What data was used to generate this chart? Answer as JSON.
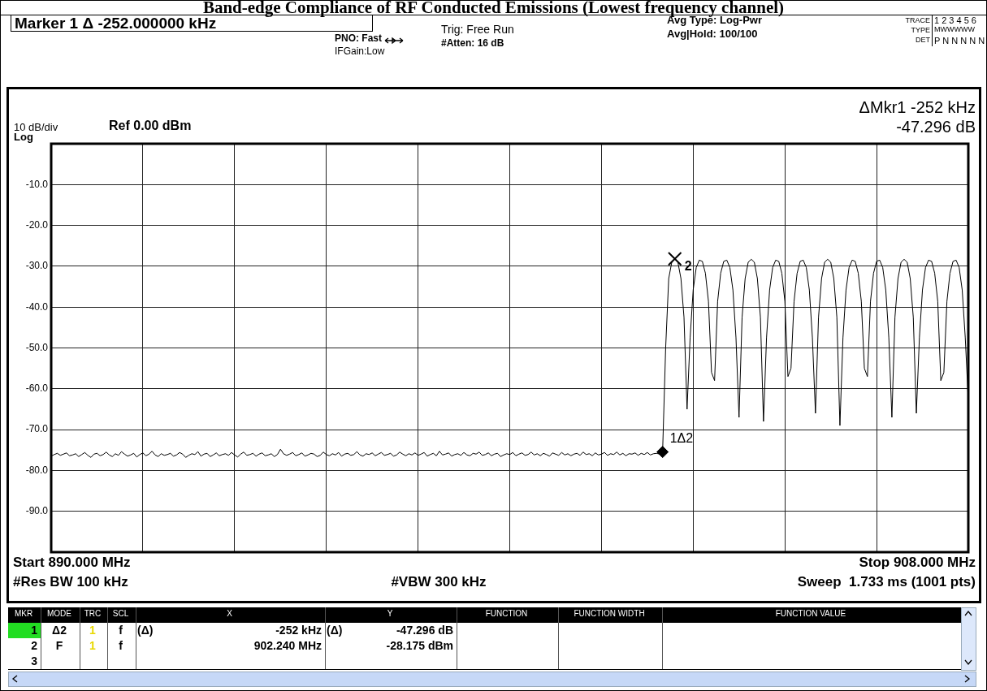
{
  "chart_data": {
    "type": "line",
    "title": "Band-edge Compliance of RF Conducted Emissions (Lowest frequency channel)",
    "categories": [
      null,
      null,
      null,
      null,
      null,
      null,
      null,
      null,
      null,
      null,
      null,
      null,
      null,
      null,
      null,
      null,
      null,
      null,
      null,
      null,
      null,
      null,
      null,
      null,
      null,
      null,
      null,
      null,
      null,
      null,
      null,
      null,
      null,
      null,
      null,
      null,
      null,
      null,
      null,
      null,
      null,
      null,
      null,
      null,
      null,
      null,
      null,
      null,
      null,
      null,
      null,
      null,
      null,
      null,
      null,
      null,
      null,
      null,
      null,
      null,
      null,
      null,
      null,
      null,
      null,
      null,
      null,
      null,
      null,
      null,
      null,
      null,
      null,
      null,
      null,
      null,
      null,
      null,
      null,
      null,
      null,
      null,
      null,
      null,
      null,
      null,
      null,
      null,
      null,
      null,
      null,
      null,
      null,
      null,
      null,
      null,
      null,
      null,
      null,
      null,
      null,
      null,
      null,
      null,
      null,
      null,
      null,
      null,
      null,
      null,
      null,
      null,
      null,
      null,
      null,
      null,
      null,
      null,
      null,
      null,
      null,
      null,
      null,
      null,
      null,
      null,
      null,
      null,
      null,
      null,
      null,
      null,
      null,
      null,
      null,
      null,
      null,
      null,
      null,
      null,
      null,
      null,
      null,
      null,
      null,
      null,
      null,
      null,
      null,
      null,
      null,
      null,
      null,
      null,
      null,
      null,
      null,
      null,
      null,
      null,
      null,
      null,
      null,
      null,
      null,
      null,
      null,
      null,
      null,
      null,
      null,
      null,
      null,
      null,
      null,
      null,
      null,
      null,
      null,
      null,
      null,
      null,
      null,
      null,
      null,
      null,
      null,
      null,
      null,
      null,
      null,
      null,
      null,
      null,
      null,
      null,
      null,
      null,
      null,
      null,
      null,
      null,
      null,
      null,
      null,
      null,
      null,
      null,
      null,
      null,
      null,
      null,
      null,
      null,
      null,
      null,
      null,
      null,
      null,
      null,
      null,
      null,
      null,
      null,
      null,
      null,
      null,
      null,
      null,
      null,
      null,
      null,
      null,
      null,
      null,
      null,
      null,
      null,
      null,
      null,
      null,
      null,
      null,
      null,
      null,
      null,
      null,
      null,
      null,
      null,
      null,
      null,
      null,
      null,
      null,
      null,
      null,
      null,
      null,
      null,
      null,
      null,
      null,
      null,
      null,
      null,
      null,
      null,
      null,
      null,
      null,
      null,
      null,
      null,
      null,
      null,
      null,
      null,
      null,
      null,
      null,
      null,
      null,
      null,
      null,
      null,
      null,
      null,
      null,
      null,
      null,
      null,
      null,
      null,
      null,
      null,
      null,
      null,
      null,
      null,
      null
    ],
    "ylim": [
      -100,
      0
    ],
    "yticks": [
      {
        "value": 0,
        "label": null
      },
      {
        "value": -10,
        "label": "-10.0"
      },
      {
        "value": -20,
        "label": "-20.0"
      },
      {
        "value": -30,
        "label": "-30.0"
      },
      {
        "value": -40,
        "label": "-40.0"
      },
      {
        "value": -50,
        "label": "-50.0"
      },
      {
        "value": -60,
        "label": "-60.0"
      },
      {
        "value": -70,
        "label": "-70.0"
      },
      {
        "value": -80,
        "label": "-80.0"
      },
      {
        "value": -90,
        "label": "-90.0"
      },
      {
        "value": -100,
        "label": null
      }
    ],
    "grid": true,
    "tick_labels": "y",
    "series": [
      {
        "type": "line",
        "color": "#000000",
        "marker": "none",
        "values": [
          -76.5,
          -76.1,
          -75.8,
          -76.3,
          -76.0,
          -75.7,
          -76.4,
          -76.2,
          -75.9,
          -76.6,
          -76.1,
          -75.6,
          -76.3,
          -76.8,
          -76.0,
          -75.8,
          -76.4,
          -76.1,
          -75.5,
          -76.2,
          -76.6,
          -75.9,
          -76.3,
          -75.4,
          -76.0,
          -76.5,
          -76.2,
          -75.8,
          -76.7,
          -76.1,
          -75.7,
          -76.4,
          -76.0,
          -75.3,
          -76.2,
          -76.6,
          -75.9,
          -76.3,
          -76.1,
          -75.8,
          -76.5,
          -76.2,
          -75.6,
          -76.0,
          -76.8,
          -76.3,
          -75.9,
          -76.1,
          -75.4,
          -76.5,
          -76.0,
          -75.8,
          -76.6,
          -76.2,
          -75.7,
          -76.4,
          -76.1,
          -75.9,
          -76.3,
          -75.6,
          -76.2,
          -76.7,
          -76.0,
          -75.5,
          -76.3,
          -76.1,
          -75.8,
          -76.5,
          -76.0,
          -75.7,
          -76.4,
          -76.2,
          -75.9,
          -76.6,
          -76.1,
          -74.8,
          -75.9,
          -76.3,
          -76.0,
          -75.6,
          -76.4,
          -76.1,
          -75.7,
          -76.5,
          -76.2,
          -75.8,
          -76.0,
          -76.6,
          -76.3,
          -75.5,
          -76.1,
          -76.4,
          -75.9,
          -76.2,
          -75.6,
          -76.5,
          -76.0,
          -75.8,
          -76.3,
          -76.1,
          -75.4,
          -76.2,
          -76.5,
          -75.9,
          -76.1,
          -75.7,
          -76.4,
          -76.0,
          -75.6,
          -76.3,
          -76.1,
          -75.8,
          -76.5,
          -76.2,
          -75.5,
          -76.0,
          -76.4,
          -75.9,
          -76.2,
          -75.7,
          -76.3,
          -76.0,
          -75.6,
          -76.5,
          -76.1,
          -75.8,
          -76.4,
          -75.3,
          -76.2,
          -76.0,
          -75.7,
          -76.5,
          -76.1,
          -75.9,
          -76.3,
          -75.6,
          -76.2,
          -76.4,
          -75.8,
          -76.0,
          -75.5,
          -76.3,
          -76.1,
          -75.7,
          -76.4,
          -76.0,
          -75.8,
          -76.6,
          -76.2,
          -75.9,
          -76.1,
          -75.6,
          -76.4,
          -76.0,
          -75.7,
          -76.3,
          -76.1,
          -75.5,
          -76.2,
          -75.9,
          -76.4,
          -75.8,
          -76.1,
          -76.5,
          -75.7,
          -76.0,
          -76.3,
          -75.6,
          -76.2,
          -75.9,
          -76.4,
          -76.0,
          -75.8,
          -76.3,
          -75.5,
          -76.1,
          -75.9,
          -76.4,
          -75.7,
          -76.2,
          -76.0,
          -75.6,
          -76.3,
          -75.9,
          -76.1,
          -75.5,
          -76.2,
          -75.8,
          -76.4,
          -75.9,
          -76.0,
          -75.7,
          -76.3,
          -75.8,
          -76.1,
          -75.6,
          -76.2,
          -75.9,
          -75.8,
          -76.0,
          -75.47,
          -50,
          -33,
          -29,
          -28.175,
          -29,
          -33,
          -42.5,
          -65,
          -47.5,
          -35.8,
          -30.3,
          -28.5,
          -28.8,
          -31.7,
          -38.6,
          -56,
          -58,
          -38.6,
          -31.7,
          -28.8,
          -28.5,
          -30.3,
          -35.8,
          -47.5,
          -67,
          -42.5,
          -33,
          -29,
          -28.3,
          -29,
          -33,
          -42.5,
          -68,
          -47.5,
          -35.8,
          -30.3,
          -28.5,
          -28.8,
          -31.7,
          -38.6,
          -57,
          -55,
          -38.6,
          -31.7,
          -28.8,
          -28.5,
          -30.3,
          -35.8,
          -47.5,
          -66,
          -42.5,
          -33,
          -29,
          -28.3,
          -29,
          -33,
          -42.5,
          -69,
          -47.5,
          -35.8,
          -30.3,
          -28.5,
          -28.8,
          -31.7,
          -38.6,
          -55,
          -57,
          -38.6,
          -31.7,
          -28.8,
          -28.5,
          -30.3,
          -35.8,
          -47.5,
          -67,
          -42.5,
          -33,
          -29,
          -28.3,
          -29,
          -33,
          -42.5,
          -66,
          -47.5,
          -35.8,
          -30.3,
          -28.5,
          -28.8,
          -31.7,
          -38.6,
          -58,
          -56,
          -38.6,
          -31.7,
          -28.8,
          -28.5,
          -30.3,
          -35.8,
          -47.5,
          -63
        ]
      },
      {
        "type": "scatter",
        "name": "1Δ2",
        "color": "#000000",
        "marker": "diamond",
        "values": [
          null,
          null,
          null,
          null,
          null,
          null,
          null,
          null,
          null,
          null,
          null,
          null,
          null,
          null,
          null,
          null,
          null,
          null,
          null,
          null,
          null,
          null,
          null,
          null,
          null,
          null,
          null,
          null,
          null,
          null,
          null,
          null,
          null,
          null,
          null,
          null,
          null,
          null,
          null,
          null,
          null,
          null,
          null,
          null,
          null,
          null,
          null,
          null,
          null,
          null,
          null,
          null,
          null,
          null,
          null,
          null,
          null,
          null,
          null,
          null,
          null,
          null,
          null,
          null,
          null,
          null,
          null,
          null,
          null,
          null,
          null,
          null,
          null,
          null,
          null,
          null,
          null,
          null,
          null,
          null,
          null,
          null,
          null,
          null,
          null,
          null,
          null,
          null,
          null,
          null,
          null,
          null,
          null,
          null,
          null,
          null,
          null,
          null,
          null,
          null,
          null,
          null,
          null,
          null,
          null,
          null,
          null,
          null,
          null,
          null,
          null,
          null,
          null,
          null,
          null,
          null,
          null,
          null,
          null,
          null,
          null,
          null,
          null,
          null,
          null,
          null,
          null,
          null,
          null,
          null,
          null,
          null,
          null,
          null,
          null,
          null,
          null,
          null,
          null,
          null,
          null,
          null,
          null,
          null,
          null,
          null,
          null,
          null,
          null,
          null,
          null,
          null,
          null,
          null,
          null,
          null,
          null,
          null,
          null,
          null,
          null,
          null,
          null,
          null,
          null,
          null,
          null,
          null,
          null,
          null,
          null,
          null,
          null,
          null,
          null,
          null,
          null,
          null,
          null,
          null,
          null,
          null,
          null,
          null,
          null,
          null,
          null,
          null,
          null,
          null,
          null,
          null,
          null,
          null,
          null,
          null,
          null,
          null,
          null,
          null,
          -75.47,
          null,
          null,
          null,
          null,
          null,
          null,
          null,
          null,
          null,
          null,
          null,
          null,
          null,
          null,
          null,
          null,
          null,
          null,
          null,
          null,
          null,
          null,
          null,
          null,
          null,
          null,
          null,
          null,
          null,
          null,
          null,
          null,
          null,
          null,
          null,
          null,
          null,
          null,
          null,
          null,
          null,
          null,
          null,
          null,
          null,
          null,
          null,
          null,
          null,
          null,
          null,
          null,
          null,
          null,
          null,
          null,
          null,
          null,
          null,
          null,
          null,
          null,
          null,
          null,
          null,
          null,
          null,
          null,
          null,
          null,
          null,
          null,
          null,
          null,
          null,
          null,
          null,
          null,
          null,
          null,
          null,
          null,
          null,
          null,
          null,
          null,
          null,
          null,
          null,
          null,
          null,
          null,
          null,
          null,
          null,
          null,
          null,
          null,
          null,
          null
        ]
      },
      {
        "type": "scatter",
        "name": "2",
        "color": "#000000",
        "marker": "cross",
        "values": [
          null,
          null,
          null,
          null,
          null,
          null,
          null,
          null,
          null,
          null,
          null,
          null,
          null,
          null,
          null,
          null,
          null,
          null,
          null,
          null,
          null,
          null,
          null,
          null,
          null,
          null,
          null,
          null,
          null,
          null,
          null,
          null,
          null,
          null,
          null,
          null,
          null,
          null,
          null,
          null,
          null,
          null,
          null,
          null,
          null,
          null,
          null,
          null,
          null,
          null,
          null,
          null,
          null,
          null,
          null,
          null,
          null,
          null,
          null,
          null,
          null,
          null,
          null,
          null,
          null,
          null,
          null,
          null,
          null,
          null,
          null,
          null,
          null,
          null,
          null,
          null,
          null,
          null,
          null,
          null,
          null,
          null,
          null,
          null,
          null,
          null,
          null,
          null,
          null,
          null,
          null,
          null,
          null,
          null,
          null,
          null,
          null,
          null,
          null,
          null,
          null,
          null,
          null,
          null,
          null,
          null,
          null,
          null,
          null,
          null,
          null,
          null,
          null,
          null,
          null,
          null,
          null,
          null,
          null,
          null,
          null,
          null,
          null,
          null,
          null,
          null,
          null,
          null,
          null,
          null,
          null,
          null,
          null,
          null,
          null,
          null,
          null,
          null,
          null,
          null,
          null,
          null,
          null,
          null,
          null,
          null,
          null,
          null,
          null,
          null,
          null,
          null,
          null,
          null,
          null,
          null,
          null,
          null,
          null,
          null,
          null,
          null,
          null,
          null,
          null,
          null,
          null,
          null,
          null,
          null,
          null,
          null,
          null,
          null,
          null,
          null,
          null,
          null,
          null,
          null,
          null,
          null,
          null,
          null,
          null,
          null,
          null,
          null,
          null,
          null,
          null,
          null,
          null,
          null,
          null,
          null,
          null,
          null,
          null,
          null,
          null,
          null,
          null,
          null,
          -28.175,
          null,
          null,
          null,
          null,
          null,
          null,
          null,
          null,
          null,
          null,
          null,
          null,
          null,
          null,
          null,
          null,
          null,
          null,
          null,
          null,
          null,
          null,
          null,
          null,
          null,
          null,
          null,
          null,
          null,
          null,
          null,
          null,
          null,
          null,
          null,
          null,
          null,
          null,
          null,
          null,
          null,
          null,
          null,
          null,
          null,
          null,
          null,
          null,
          null,
          null,
          null,
          null,
          null,
          null,
          null,
          null,
          null,
          null,
          null,
          null,
          null,
          null,
          null,
          null,
          null,
          null,
          null,
          null,
          null,
          null,
          null,
          null,
          null,
          null,
          null,
          null,
          null,
          null,
          null,
          null,
          null,
          null,
          null,
          null,
          null,
          null,
          null,
          null,
          null,
          null,
          null,
          null,
          null,
          null,
          null,
          null
        ]
      }
    ],
    "annotations": [
      "Marker 1 Δ -252.000000 kHz",
      "PNO: Fast",
      "IFGain:Low",
      "Trig: Free Run",
      "#Atten: 16 dB",
      "Avg Type: Log-Pwr",
      "Avg|Hold: 100/100",
      "TRACE",
      "1 2 3 4 5 6",
      "TYPE",
      "MWWWWW",
      "DET",
      "P N N N N N",
      "ΔMkr1 -252 kHz",
      "-47.296 dB",
      "10 dB/div",
      "Log",
      "Ref 0.00 dBm",
      "Start 890.000 MHz",
      "Stop 908.000 MHz",
      "#Res BW 100 kHz",
      "#VBW 300 kHz",
      "Sweep  1.733 ms (1001 pts)",
      "MKR",
      "MODE",
      "TRC",
      "SCL",
      "X",
      "Y",
      "FUNCTION",
      "FUNCTION WIDTH",
      "FUNCTION VALUE",
      "1",
      "Δ2",
      "1",
      "f",
      "(Δ)",
      "-252 kHz",
      "(Δ)",
      "-47.296 dB",
      "2",
      "F",
      "1",
      "f",
      "902.240 MHz",
      "-28.175 dBm",
      "3"
    ]
  }
}
